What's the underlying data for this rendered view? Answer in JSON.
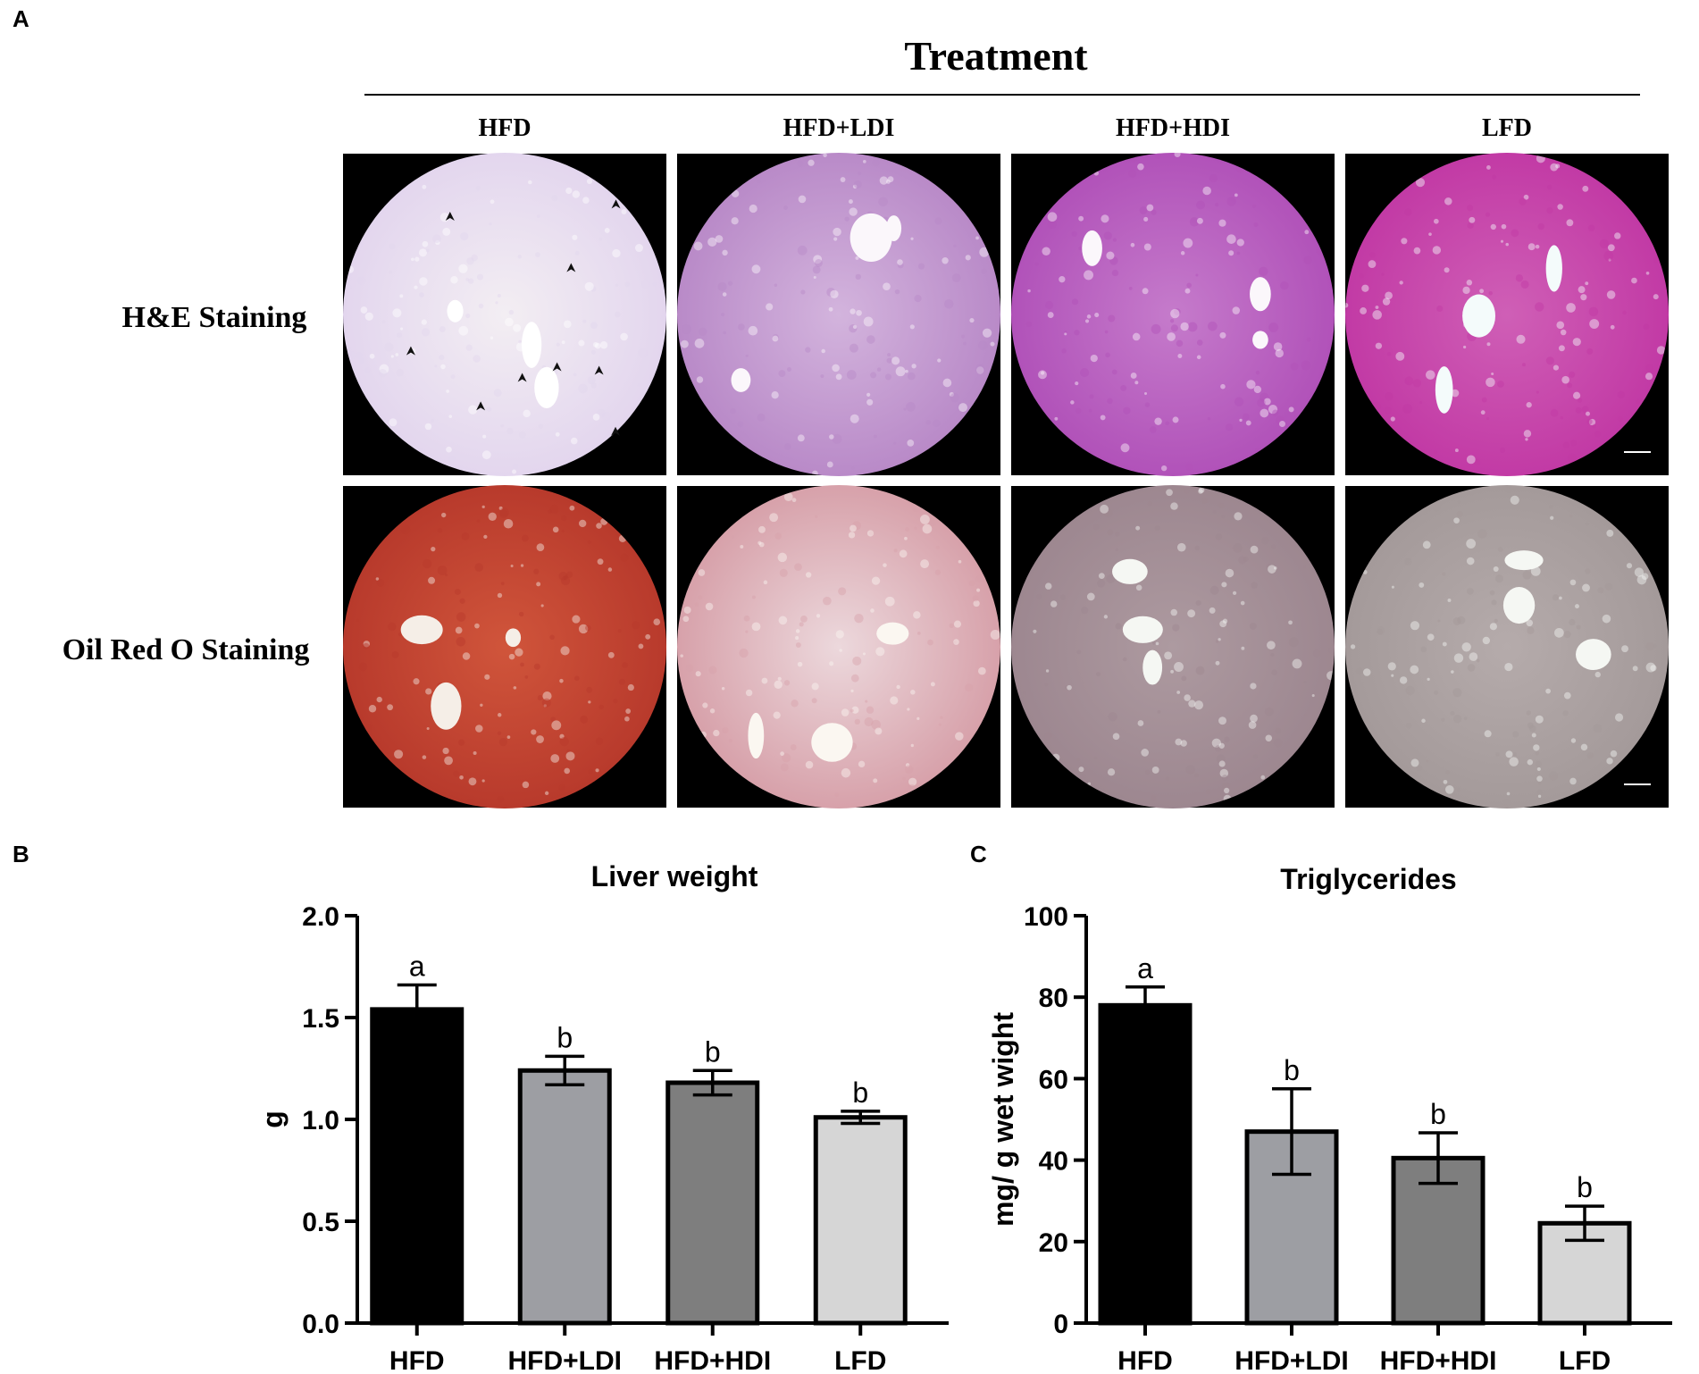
{
  "panel_a": {
    "label": "A",
    "header": "Treatment",
    "columns": [
      "HFD",
      "HFD+LDI",
      "HFD+HDI",
      "LFD"
    ],
    "rows": [
      "H&E Staining",
      "Oil Red O Staining"
    ],
    "micrographs": [
      [
        {
          "tone_outer": "#e3d6ee",
          "tone_inner": "#f3eef3",
          "vessel": "#ffffff",
          "arrows": 9
        },
        {
          "tone_outer": "#b98ac8",
          "tone_inner": "#d3b4dd",
          "vessel": "#fbf7fb"
        },
        {
          "tone_outer": "#b152b9",
          "tone_inner": "#c57bcb",
          "vessel": "#fbf7fb"
        },
        {
          "tone_outer": "#c23aa5",
          "tone_inner": "#cf5fb6",
          "vessel": "#f4fbfb",
          "scale_bar": true
        }
      ],
      [
        {
          "tone_outer": "#b83a2c",
          "tone_inner": "#d0553b",
          "vessel": "#f5eee7"
        },
        {
          "tone_outer": "#d7a1aa",
          "tone_inner": "#ecd8dc",
          "vessel": "#fbf7f1"
        },
        {
          "tone_outer": "#9d8790",
          "tone_inner": "#ad9aa0",
          "vessel": "#f5f7f3"
        },
        {
          "tone_outer": "#a49a9a",
          "tone_inner": "#b5abab",
          "vessel": "#f5f7f3",
          "scale_bar": true
        }
      ]
    ]
  },
  "chart_data": [
    {
      "type": "bar",
      "panel_label": "B",
      "title": "Liver weight",
      "ylabel": "g",
      "xlabel": "",
      "categories": [
        "HFD",
        "HFD+LDI",
        "HFD+HDI",
        "LFD"
      ],
      "values": [
        1.54,
        1.24,
        1.18,
        1.01
      ],
      "errors": [
        0.12,
        0.07,
        0.06,
        0.03
      ],
      "letters": [
        "a",
        "b",
        "b",
        "b"
      ],
      "colors": [
        "#000000",
        "#9d9ea3",
        "#7e7e7e",
        "#d6d6d6"
      ],
      "ylim": [
        0,
        2.0
      ],
      "yticks": [
        "0.0",
        "0.5",
        "1.0",
        "1.5",
        "2.0"
      ],
      "grid": false
    },
    {
      "type": "bar",
      "panel_label": "C",
      "title": "Triglycerides",
      "ylabel": "mg/ g wet wight",
      "xlabel": "",
      "categories": [
        "HFD",
        "HFD+LDI",
        "HFD+HDI",
        "LFD"
      ],
      "values": [
        78,
        47,
        40.5,
        24.5
      ],
      "errors": [
        4.5,
        10.5,
        6.2,
        4.2
      ],
      "letters": [
        "a",
        "b",
        "b",
        "b"
      ],
      "colors": [
        "#000000",
        "#9d9ea3",
        "#7e7e7e",
        "#d6d6d6"
      ],
      "ylim": [
        0,
        100
      ],
      "yticks": [
        "0",
        "20",
        "40",
        "60",
        "80",
        "100"
      ],
      "grid": false
    }
  ]
}
